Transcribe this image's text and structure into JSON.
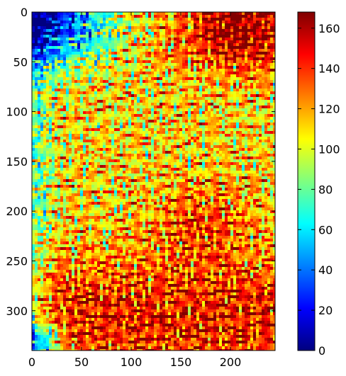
{
  "chart_data": {
    "type": "heatmap",
    "title": "",
    "xlabel": "",
    "ylabel": "",
    "xlim": [
      0,
      245
    ],
    "ylim": [
      340,
      0
    ],
    "x_ticks": [
      0,
      50,
      100,
      150,
      200
    ],
    "y_ticks": [
      0,
      50,
      100,
      150,
      200,
      250,
      300
    ],
    "colorbar": {
      "colormap": "jet",
      "range": [
        0,
        168
      ],
      "ticks": [
        0,
        20,
        40,
        60,
        80,
        100,
        120,
        140,
        160
      ]
    },
    "grid": false,
    "legend": "none",
    "field_description_regions": [
      {
        "region": "top-left",
        "x_range": [
          0,
          60
        ],
        "y_range": [
          0,
          60
        ],
        "approx_value": 20
      },
      {
        "region": "top-right",
        "x_range": [
          150,
          245
        ],
        "y_range": [
          0,
          60
        ],
        "approx_value": 150
      },
      {
        "region": "center",
        "x_range": [
          80,
          200
        ],
        "y_range": [
          100,
          250
        ],
        "approx_value": 110
      },
      {
        "region": "bottom",
        "x_range": [
          20,
          245
        ],
        "y_range": [
          250,
          340
        ],
        "approx_value": 145
      }
    ]
  }
}
